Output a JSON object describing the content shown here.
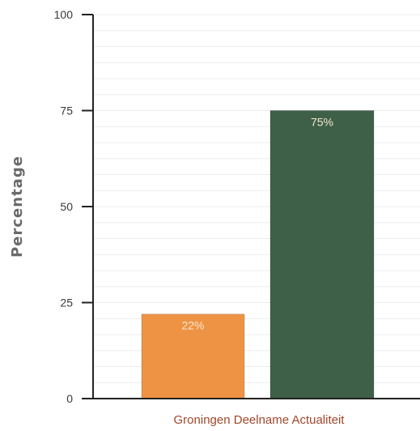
{
  "chart_data": {
    "type": "bar",
    "title": "",
    "xlabel": "Groningen Deelname Actualiteit",
    "ylabel": "Percentage",
    "ylim": [
      0,
      100
    ],
    "yticks": [
      "0",
      "25",
      "50",
      "75",
      "100"
    ],
    "categories": [
      "",
      ""
    ],
    "values": [
      22,
      75
    ],
    "data_labels": [
      "22%",
      "75%"
    ],
    "colors": [
      "#ee9344",
      "#3e6048"
    ],
    "grid": true,
    "legend": "none"
  }
}
